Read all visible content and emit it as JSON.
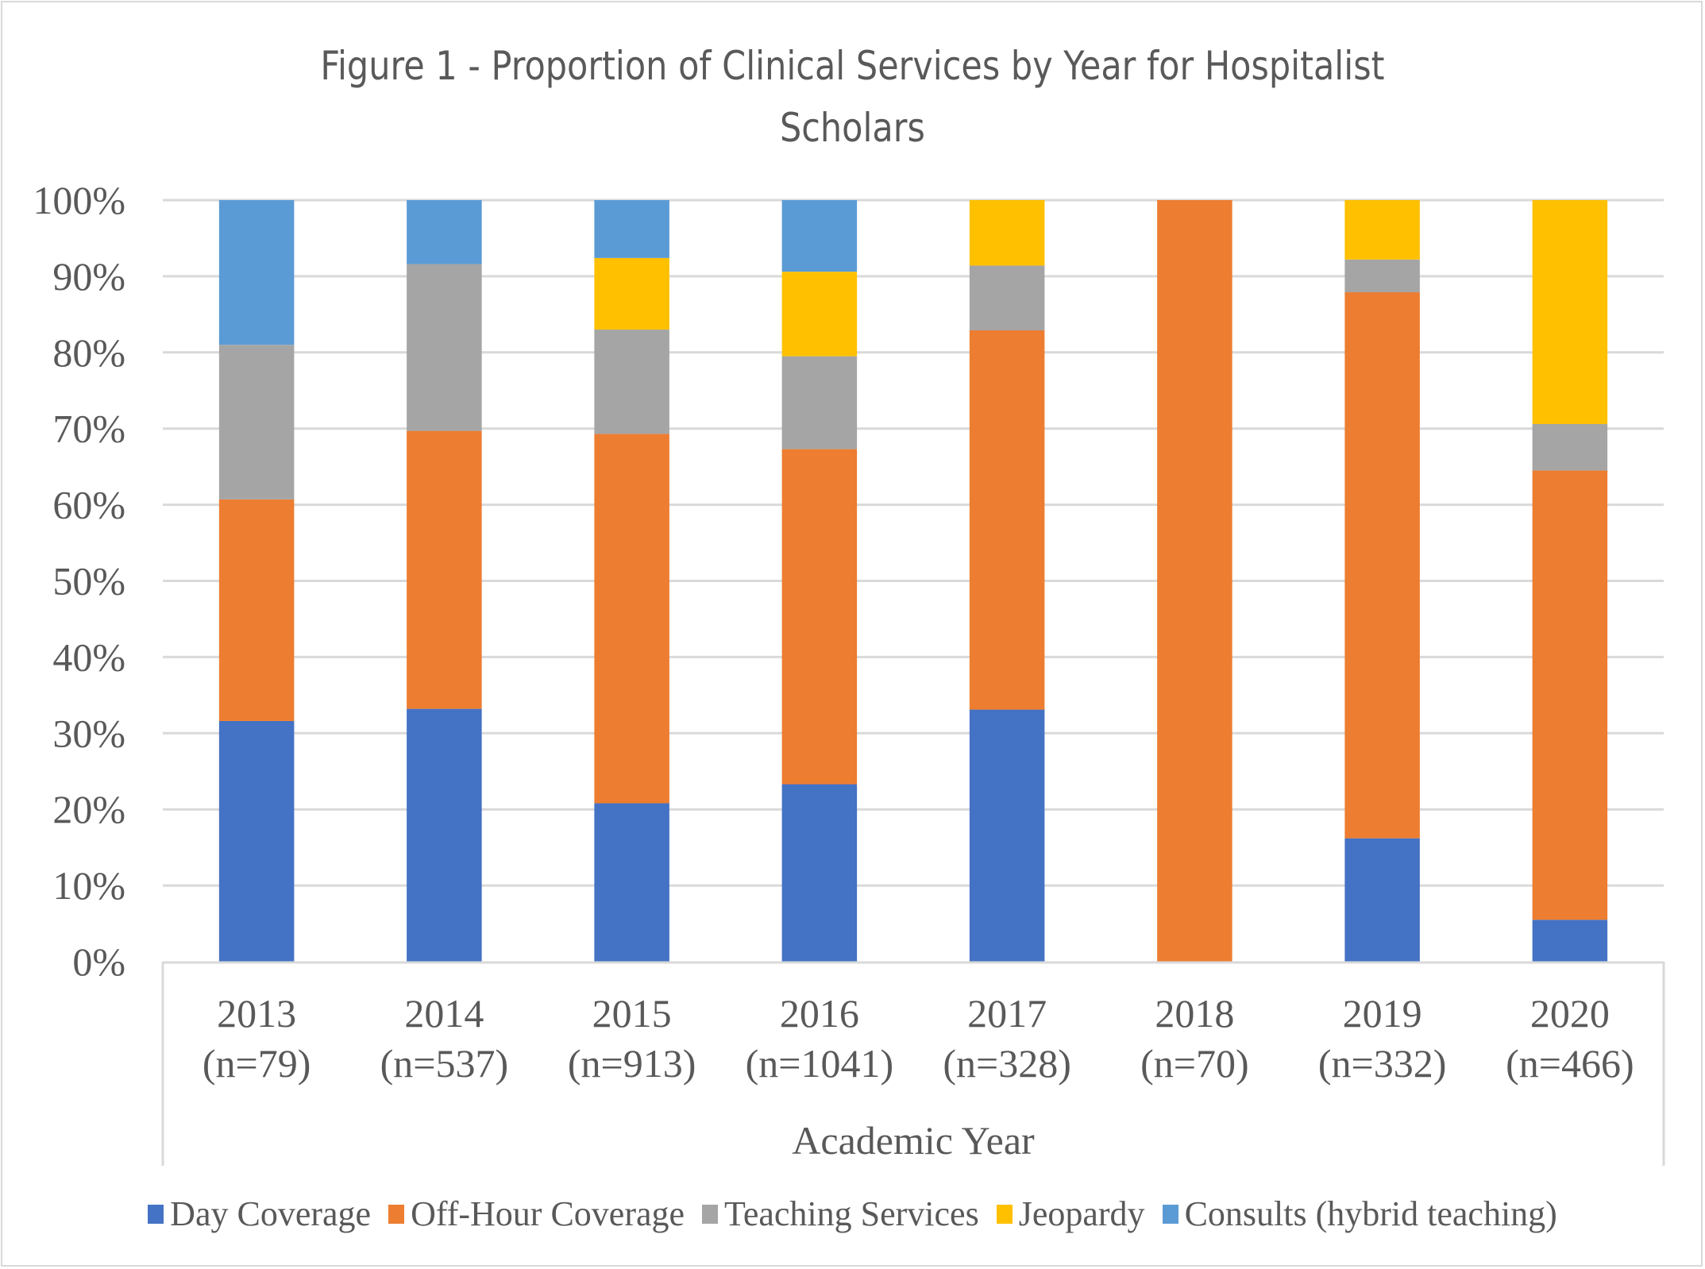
{
  "chart_data": {
    "type": "bar",
    "stacked": true,
    "orientation": "vertical",
    "title": "Figure 1 - Proportion of Clinical Services by Year for Hospitalist Scholars",
    "title_lines": [
      "Figure 1 - Proportion of Clinical Services by Year for Hospitalist",
      "Scholars"
    ],
    "xlabel": "Academic Year",
    "ylabel": "",
    "ylim": [
      0,
      100
    ],
    "y_ticks": [
      0,
      10,
      20,
      30,
      40,
      50,
      60,
      70,
      80,
      90,
      100
    ],
    "y_tick_labels": [
      "0%",
      "10%",
      "20%",
      "30%",
      "40%",
      "50%",
      "60%",
      "70%",
      "80%",
      "90%",
      "100%"
    ],
    "grid": "horizontal",
    "legend_position": "bottom",
    "categories": [
      "2013",
      "2014",
      "2015",
      "2016",
      "2017",
      "2018",
      "2019",
      "2020"
    ],
    "category_sublabels": [
      "(n=79)",
      "(n=537)",
      "(n=913)",
      "(n=1041)",
      "(n=328)",
      "(n=70)",
      "(n=332)",
      "(n=466)"
    ],
    "series": [
      {
        "name": "Day Coverage",
        "color": "#4472c4",
        "values": [
          31.6,
          33.2,
          20.8,
          23.3,
          33.1,
          0,
          16.2,
          5.5
        ]
      },
      {
        "name": "Off-Hour Coverage",
        "color": "#ed7d31",
        "values": [
          29.1,
          36.5,
          48.5,
          44.0,
          49.8,
          100,
          71.7,
          59.0
        ]
      },
      {
        "name": "Teaching Services",
        "color": "#a5a5a5",
        "values": [
          20.3,
          21.9,
          13.7,
          12.2,
          8.5,
          0,
          4.3,
          6.1
        ]
      },
      {
        "name": "Jeopardy",
        "color": "#ffc000",
        "values": [
          0,
          0,
          9.4,
          11.1,
          8.6,
          0,
          7.8,
          29.4
        ]
      },
      {
        "name": "Consults (hybrid teaching)",
        "color": "#5b9bd5",
        "values": [
          19.0,
          8.4,
          7.6,
          9.4,
          0,
          0,
          0,
          0
        ]
      }
    ]
  }
}
